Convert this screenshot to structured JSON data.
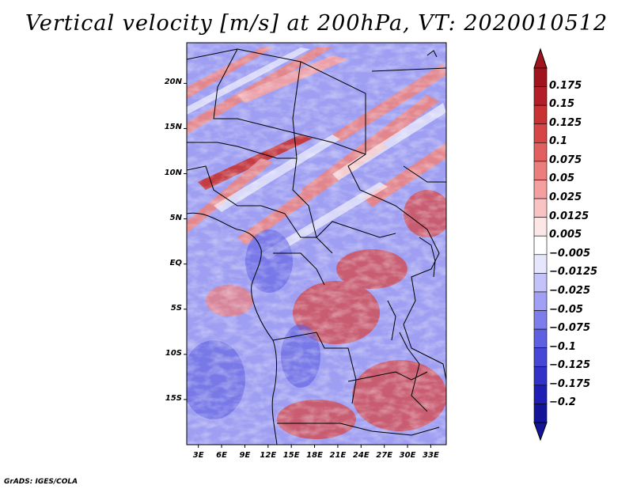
{
  "title": "Vertical velocity [m/s] at 200hPa, VT: 2020010512",
  "footer": "GrADS: IGES/COLA",
  "map": {
    "lat_ticks": [
      {
        "label": "20N",
        "value": 20
      },
      {
        "label": "15N",
        "value": 15
      },
      {
        "label": "10N",
        "value": 10
      },
      {
        "label": "5N",
        "value": 5
      },
      {
        "label": "EQ",
        "value": 0
      },
      {
        "label": "5S",
        "value": -5
      },
      {
        "label": "10S",
        "value": -10
      },
      {
        "label": "15S",
        "value": -15
      }
    ],
    "lon_ticks": [
      {
        "label": "3E",
        "value": 3
      },
      {
        "label": "6E",
        "value": 6
      },
      {
        "label": "9E",
        "value": 9
      },
      {
        "label": "12E",
        "value": 12
      },
      {
        "label": "15E",
        "value": 15
      },
      {
        "label": "18E",
        "value": 18
      },
      {
        "label": "21E",
        "value": 21
      },
      {
        "label": "24E",
        "value": 24
      },
      {
        "label": "27E",
        "value": 27
      },
      {
        "label": "30E",
        "value": 30
      },
      {
        "label": "33E",
        "value": 33
      }
    ],
    "lat_range": [
      -20,
      24.5
    ],
    "lon_range": [
      1.5,
      35
    ]
  },
  "colorbar": {
    "labels": [
      "0.175",
      "0.15",
      "0.125",
      "0.1",
      "0.075",
      "0.05",
      "0.025",
      "0.0125",
      "0.005",
      "−0.005",
      "−0.0125",
      "−0.025",
      "−0.05",
      "−0.075",
      "−0.1",
      "−0.125",
      "−0.175",
      "−0.2"
    ],
    "colors": [
      "#a0141e",
      "#b41e28",
      "#c83232",
      "#d74646",
      "#e15f5f",
      "#eb7d7d",
      "#f5a0a0",
      "#fac3c3",
      "#fde6e6",
      "#ffffff",
      "#e6e6fd",
      "#c3c3fa",
      "#a0a0f5",
      "#7d7deb",
      "#5f5fe1",
      "#4646d7",
      "#3232c8",
      "#1e1eb4",
      "#14149b"
    ]
  }
}
